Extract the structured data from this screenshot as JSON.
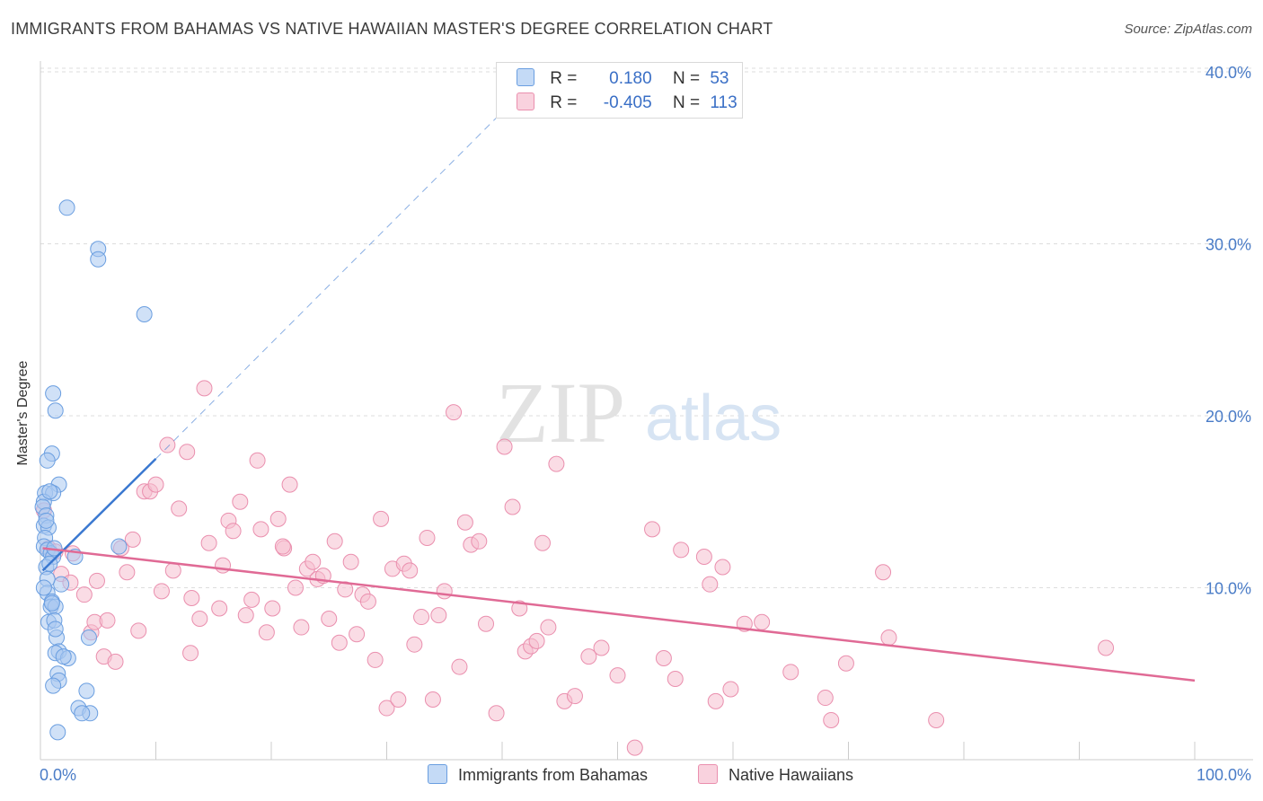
{
  "title": "IMMIGRANTS FROM BAHAMAS VS NATIVE HAWAIIAN MASTER'S DEGREE CORRELATION CHART",
  "source": "Source: ZipAtlas.com",
  "watermark": {
    "zip": "ZIP",
    "atlas": "atlas"
  },
  "legend": {
    "row1": {
      "r_label": "R =",
      "r_value": "0.180",
      "n_label": "N =",
      "n_value": "53"
    },
    "row2": {
      "r_label": "R =",
      "r_value": "-0.405",
      "n_label": "N =",
      "n_value": "113"
    }
  },
  "bottom_legend": {
    "series1": "Immigrants from Bahamas",
    "series2": "Native Hawaiians"
  },
  "colors": {
    "blue_fill": "#a9c8f0",
    "blue_stroke": "#6a9ee0",
    "blue_line": "#3a78d0",
    "pink_fill": "#f6bfd0",
    "pink_stroke": "#ea8fae",
    "pink_line": "#e06a95",
    "axis_text": "#4a7cc7",
    "grid": "#dddddd"
  },
  "chart_data": {
    "type": "scatter",
    "title": "IMMIGRANTS FROM BAHAMAS VS NATIVE HAWAIIAN MASTER'S DEGREE CORRELATION CHART",
    "xlabel": "",
    "ylabel": "Master's Degree",
    "xlim": [
      0,
      100
    ],
    "ylim": [
      0,
      40
    ],
    "x_tick_labels": [
      "0.0%",
      "100.0%"
    ],
    "y_tick_labels": [
      "10.0%",
      "20.0%",
      "30.0%",
      "40.0%"
    ],
    "y_ticks": [
      10,
      20,
      30,
      40
    ],
    "grid": true,
    "legend_position": "top-center",
    "series": [
      {
        "name": "Immigrants from Bahamas",
        "color": "#a9c8f0",
        "R": 0.18,
        "N": 53,
        "trend": {
          "x": [
            0.2,
            10
          ],
          "y": [
            11.0,
            17.5
          ],
          "dashed_extension_to": [
            40.5,
            38.0
          ]
        },
        "points": [
          [
            2.3,
            32.1
          ],
          [
            5.0,
            29.7
          ],
          [
            5.0,
            29.1
          ],
          [
            9.0,
            25.9
          ],
          [
            1.1,
            21.3
          ],
          [
            1.3,
            20.3
          ],
          [
            1.0,
            17.8
          ],
          [
            0.6,
            17.4
          ],
          [
            1.6,
            16.0
          ],
          [
            0.4,
            15.5
          ],
          [
            1.1,
            15.5
          ],
          [
            0.3,
            15.0
          ],
          [
            0.2,
            14.7
          ],
          [
            0.5,
            14.2
          ],
          [
            0.3,
            13.6
          ],
          [
            0.7,
            13.5
          ],
          [
            0.4,
            12.9
          ],
          [
            0.3,
            12.4
          ],
          [
            0.6,
            12.2
          ],
          [
            0.9,
            12.0
          ],
          [
            1.1,
            11.8
          ],
          [
            3.0,
            11.8
          ],
          [
            6.8,
            12.4
          ],
          [
            0.5,
            11.2
          ],
          [
            1.8,
            10.2
          ],
          [
            0.6,
            10.5
          ],
          [
            0.6,
            9.7
          ],
          [
            1.0,
            9.2
          ],
          [
            0.9,
            8.9
          ],
          [
            1.3,
            8.9
          ],
          [
            0.7,
            8.0
          ],
          [
            1.2,
            8.1
          ],
          [
            4.2,
            7.1
          ],
          [
            1.4,
            7.1
          ],
          [
            1.3,
            7.6
          ],
          [
            1.6,
            6.3
          ],
          [
            1.3,
            6.2
          ],
          [
            2.4,
            5.9
          ],
          [
            1.5,
            5.0
          ],
          [
            1.6,
            4.6
          ],
          [
            1.1,
            4.3
          ],
          [
            4.0,
            4.0
          ],
          [
            3.3,
            3.0
          ],
          [
            4.3,
            2.7
          ],
          [
            3.6,
            2.7
          ],
          [
            1.5,
            1.6
          ],
          [
            0.8,
            15.6
          ],
          [
            0.5,
            13.9
          ],
          [
            1.2,
            12.3
          ],
          [
            0.8,
            11.4
          ],
          [
            0.3,
            10.0
          ],
          [
            1.0,
            9.1
          ],
          [
            2.0,
            6.0
          ]
        ]
      },
      {
        "name": "Native Hawaiians",
        "color": "#f6bfd0",
        "R": -0.405,
        "N": 113,
        "trend": {
          "x": [
            0.2,
            100
          ],
          "y": [
            12.3,
            4.6
          ]
        },
        "points": [
          [
            0.3,
            14.5
          ],
          [
            0.7,
            12.3
          ],
          [
            1.3,
            12.1
          ],
          [
            1.8,
            10.8
          ],
          [
            2.6,
            10.3
          ],
          [
            2.8,
            12.0
          ],
          [
            3.8,
            9.6
          ],
          [
            4.4,
            7.4
          ],
          [
            4.7,
            8.0
          ],
          [
            4.9,
            10.4
          ],
          [
            5.5,
            6.0
          ],
          [
            5.8,
            8.1
          ],
          [
            6.5,
            5.7
          ],
          [
            7.0,
            12.3
          ],
          [
            7.5,
            10.9
          ],
          [
            8.0,
            12.8
          ],
          [
            8.5,
            7.5
          ],
          [
            9.0,
            15.6
          ],
          [
            9.5,
            15.6
          ],
          [
            10.0,
            16.0
          ],
          [
            10.5,
            9.8
          ],
          [
            11.5,
            11.0
          ],
          [
            12.0,
            14.6
          ],
          [
            11.0,
            18.3
          ],
          [
            12.7,
            17.9
          ],
          [
            13.0,
            6.2
          ],
          [
            13.8,
            8.2
          ],
          [
            14.2,
            21.6
          ],
          [
            14.6,
            12.6
          ],
          [
            15.5,
            8.8
          ],
          [
            15.8,
            11.3
          ],
          [
            16.3,
            13.9
          ],
          [
            16.7,
            13.3
          ],
          [
            17.3,
            15.0
          ],
          [
            17.8,
            8.4
          ],
          [
            18.3,
            9.3
          ],
          [
            18.8,
            17.4
          ],
          [
            19.1,
            13.4
          ],
          [
            19.6,
            7.4
          ],
          [
            20.1,
            8.8
          ],
          [
            20.6,
            14.0
          ],
          [
            21.1,
            12.3
          ],
          [
            21.6,
            16.0
          ],
          [
            22.1,
            10.0
          ],
          [
            22.6,
            7.7
          ],
          [
            23.1,
            11.1
          ],
          [
            23.6,
            11.5
          ],
          [
            24.0,
            10.5
          ],
          [
            24.5,
            10.7
          ],
          [
            25.0,
            8.2
          ],
          [
            25.5,
            12.7
          ],
          [
            25.9,
            6.8
          ],
          [
            26.4,
            9.9
          ],
          [
            26.9,
            11.5
          ],
          [
            27.4,
            7.3
          ],
          [
            27.9,
            9.6
          ],
          [
            28.4,
            9.2
          ],
          [
            29.0,
            5.8
          ],
          [
            29.5,
            14.0
          ],
          [
            30.0,
            3.0
          ],
          [
            30.5,
            11.1
          ],
          [
            31.0,
            3.5
          ],
          [
            31.5,
            11.4
          ],
          [
            32.0,
            11.0
          ],
          [
            32.4,
            6.7
          ],
          [
            33.0,
            8.3
          ],
          [
            33.5,
            12.9
          ],
          [
            34.0,
            3.5
          ],
          [
            34.5,
            8.4
          ],
          [
            35.0,
            9.8
          ],
          [
            35.8,
            20.2
          ],
          [
            36.3,
            5.4
          ],
          [
            36.8,
            13.8
          ],
          [
            37.3,
            12.5
          ],
          [
            38.0,
            12.7
          ],
          [
            38.6,
            7.9
          ],
          [
            39.5,
            2.7
          ],
          [
            40.2,
            18.2
          ],
          [
            40.9,
            14.7
          ],
          [
            41.5,
            8.8
          ],
          [
            42.0,
            6.3
          ],
          [
            42.5,
            6.6
          ],
          [
            43.0,
            6.9
          ],
          [
            43.5,
            12.6
          ],
          [
            44.0,
            7.7
          ],
          [
            44.7,
            17.2
          ],
          [
            45.4,
            3.4
          ],
          [
            46.3,
            3.7
          ],
          [
            47.5,
            6.0
          ],
          [
            48.6,
            6.5
          ],
          [
            50.0,
            4.9
          ],
          [
            51.5,
            0.7
          ],
          [
            53.0,
            13.4
          ],
          [
            54.0,
            5.9
          ],
          [
            55.0,
            4.7
          ],
          [
            55.5,
            12.2
          ],
          [
            57.5,
            11.8
          ],
          [
            58.0,
            10.2
          ],
          [
            58.5,
            3.4
          ],
          [
            59.1,
            11.2
          ],
          [
            59.8,
            4.1
          ],
          [
            61.0,
            7.9
          ],
          [
            62.5,
            8.0
          ],
          [
            65.0,
            5.1
          ],
          [
            68.0,
            3.6
          ],
          [
            69.8,
            5.6
          ],
          [
            73.0,
            10.9
          ],
          [
            73.5,
            7.1
          ],
          [
            77.6,
            2.3
          ],
          [
            92.3,
            6.5
          ],
          [
            68.5,
            2.3
          ],
          [
            21.0,
            12.4
          ],
          [
            13.1,
            9.4
          ]
        ]
      }
    ]
  }
}
